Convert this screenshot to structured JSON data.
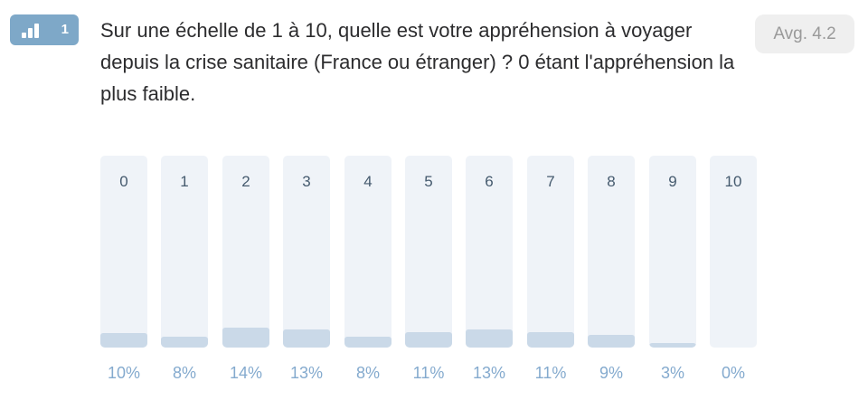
{
  "question": {
    "number": "1",
    "type_icon": "bar-chart-icon",
    "text": "Sur une échelle de 1 à 10, quelle est votre appréhension à voyager depuis la crise sanitaire (France ou étranger) ? 0 étant l'appréhension la plus faible.",
    "average_label": "Avg. 4.2"
  },
  "colors": {
    "badge": "#7ea8c8",
    "bar_track": "#eff3f8",
    "bar_fill": "#cad9e8",
    "percent_text": "#84aace",
    "option_label_text": "#455a6e"
  },
  "chart_data": {
    "type": "bar",
    "categories": [
      "0",
      "1",
      "2",
      "3",
      "4",
      "5",
      "6",
      "7",
      "8",
      "9",
      "10"
    ],
    "values": [
      10,
      8,
      14,
      13,
      8,
      11,
      13,
      11,
      9,
      3,
      0
    ],
    "value_labels": [
      "10%",
      "8%",
      "14%",
      "13%",
      "8%",
      "11%",
      "13%",
      "11%",
      "9%",
      "3%",
      "0%"
    ],
    "unit": "%",
    "ylim": [
      0,
      100
    ],
    "title": "",
    "xlabel": "",
    "ylabel": "",
    "grid": false
  }
}
